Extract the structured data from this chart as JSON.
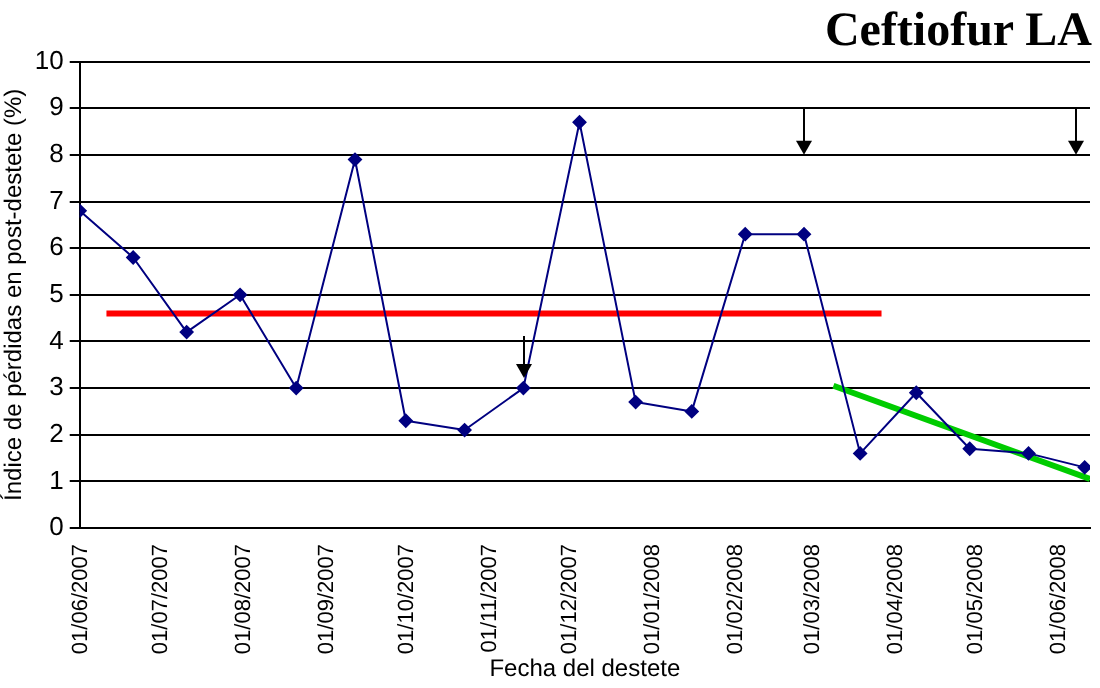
{
  "chart_data": {
    "type": "line",
    "title": "Ceftiofur LA",
    "xlabel": "Fecha del destete",
    "ylabel": "Índice de pérdidas en post-destete (%)",
    "xlim": [
      "2007-06-01",
      "2008-06-13"
    ],
    "xticks": [
      {
        "value": "2007-06-01",
        "label": "01/06/2007"
      },
      {
        "value": "2007-07-01",
        "label": "01/07/2007"
      },
      {
        "value": "2007-08-01",
        "label": "01/08/2007"
      },
      {
        "value": "2007-09-01",
        "label": "01/09/2007"
      },
      {
        "value": "2007-10-01",
        "label": "01/10/2007"
      },
      {
        "value": "2007-11-01",
        "label": "01/11/2007"
      },
      {
        "value": "2007-12-01",
        "label": "01/12/2007"
      },
      {
        "value": "2008-01-01",
        "label": "01/01/2008"
      },
      {
        "value": "2008-02-01",
        "label": "01/02/2008"
      },
      {
        "value": "2008-03-01",
        "label": "01/03/2008"
      },
      {
        "value": "2008-04-01",
        "label": "01/04/2008"
      },
      {
        "value": "2008-05-01",
        "label": "01/05/2008"
      },
      {
        "value": "2008-06-01",
        "label": "01/06/2008"
      }
    ],
    "ylim": [
      0,
      10
    ],
    "yticks": [
      0,
      1,
      2,
      3,
      4,
      5,
      6,
      7,
      8,
      9,
      10
    ],
    "grid": "y",
    "marker": "diamond",
    "line_style": "solid",
    "series": [
      {
        "color": "#000080",
        "x": [
          "2007-06-01",
          "2007-06-21",
          "2007-07-11",
          "2007-07-31",
          "2007-08-21",
          "2007-09-12",
          "2007-10-01",
          "2007-10-23",
          "2007-11-14",
          "2007-12-05",
          "2007-12-26",
          "2008-01-16",
          "2008-02-05",
          "2008-02-27",
          "2008-03-19",
          "2008-04-09",
          "2008-04-29",
          "2008-05-21",
          "2008-06-11"
        ],
        "values": [
          6.8,
          5.8,
          4.2,
          5.0,
          3.0,
          7.9,
          2.3,
          2.1,
          3.0,
          8.7,
          2.7,
          2.5,
          6.3,
          6.3,
          1.6,
          2.9,
          1.7,
          1.6,
          1.3
        ]
      },
      {
        "type": "line",
        "marker": "none",
        "color": "#ff0000",
        "x": [
          "2007-06-11",
          "2008-03-27"
        ],
        "values": [
          4.6,
          4.6
        ]
      },
      {
        "type": "line",
        "marker": "none",
        "color": "#00cc00",
        "x": [
          "2008-03-09",
          "2008-06-13"
        ],
        "values": [
          3.05,
          1.05
        ]
      }
    ]
  }
}
